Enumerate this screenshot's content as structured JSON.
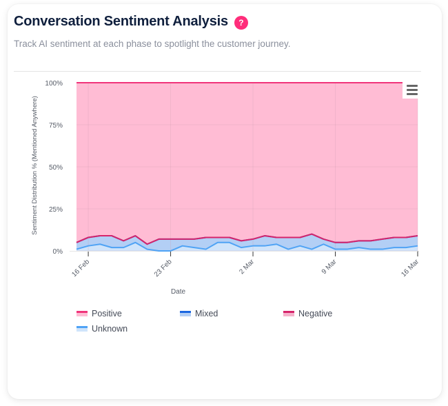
{
  "header": {
    "title": "Conversation Sentiment Analysis",
    "help_icon": "question-mark-icon",
    "help_symbol": "?",
    "subtitle": "Track AI sentiment at each phase to spotlight the customer journey."
  },
  "menu": {
    "icon": "hamburger-menu-icon"
  },
  "colors": {
    "positive_line": "#f0347a",
    "positive_fill": "#ffbcd4",
    "negative_line": "#d6246a",
    "negative_fill": "#f5b3cc",
    "mixed_line": "#1a66e0",
    "mixed_fill": "#b3cff5",
    "unknown_line": "#4fa3f5",
    "unknown_fill": "#cfe4fb",
    "accent": "#ff2d7a"
  },
  "chart_data": {
    "type": "area",
    "stacked": true,
    "normalized_percent": true,
    "title": "",
    "xlabel": "Date",
    "ylabel": "Sentiment Distribution % (Mentioned Anywhere)",
    "ylim": [
      0,
      100
    ],
    "yticks": [
      "0%",
      "25%",
      "50%",
      "75%",
      "100%"
    ],
    "ytick_values": [
      0,
      25,
      50,
      75,
      100
    ],
    "xticks": [
      "16 Feb",
      "23 Feb",
      "2 Mar",
      "9 Mar",
      "16 Mar"
    ],
    "xtick_indices": [
      1,
      8,
      15,
      22,
      29
    ],
    "grid": true,
    "legend_position": "bottom",
    "x": [
      "15 Feb",
      "16 Feb",
      "17 Feb",
      "18 Feb",
      "19 Feb",
      "20 Feb",
      "21 Feb",
      "22 Feb",
      "23 Feb",
      "24 Feb",
      "25 Feb",
      "26 Feb",
      "27 Feb",
      "28 Feb",
      "1 Mar",
      "2 Mar",
      "3 Mar",
      "4 Mar",
      "5 Mar",
      "6 Mar",
      "7 Mar",
      "8 Mar",
      "9 Mar",
      "10 Mar",
      "11 Mar",
      "12 Mar",
      "13 Mar",
      "14 Mar",
      "15 Mar",
      "16 Mar"
    ],
    "series": [
      {
        "name": "Unknown",
        "values": [
          1,
          3,
          4,
          2,
          2,
          5,
          1,
          0,
          0,
          3,
          2,
          1,
          5,
          5,
          2,
          3,
          3,
          4,
          1,
          3,
          1,
          4,
          1,
          1,
          2,
          1,
          1,
          2,
          2,
          3
        ]
      },
      {
        "name": "Mixed",
        "values": [
          4,
          5,
          5,
          7,
          4,
          4,
          3,
          7,
          7,
          4,
          5,
          7,
          3,
          3,
          4,
          4,
          6,
          4,
          7,
          5,
          9,
          3,
          4,
          4,
          4,
          5,
          6,
          6,
          6,
          6
        ]
      },
      {
        "name": "Negative",
        "values": [
          0,
          0,
          0,
          0,
          0,
          0,
          0,
          0,
          0,
          0,
          0,
          0,
          0,
          0,
          0,
          0,
          0,
          0,
          0,
          0,
          0,
          0,
          0,
          0,
          0,
          0,
          0,
          0,
          0,
          0
        ]
      },
      {
        "name": "Positive",
        "values": [
          95,
          92,
          91,
          91,
          94,
          91,
          96,
          93,
          93,
          93,
          93,
          92,
          92,
          92,
          94,
          93,
          91,
          92,
          92,
          92,
          90,
          93,
          95,
          95,
          94,
          94,
          93,
          92,
          92,
          91
        ]
      }
    ],
    "legend": [
      "Positive",
      "Mixed",
      "Negative",
      "Unknown"
    ]
  }
}
